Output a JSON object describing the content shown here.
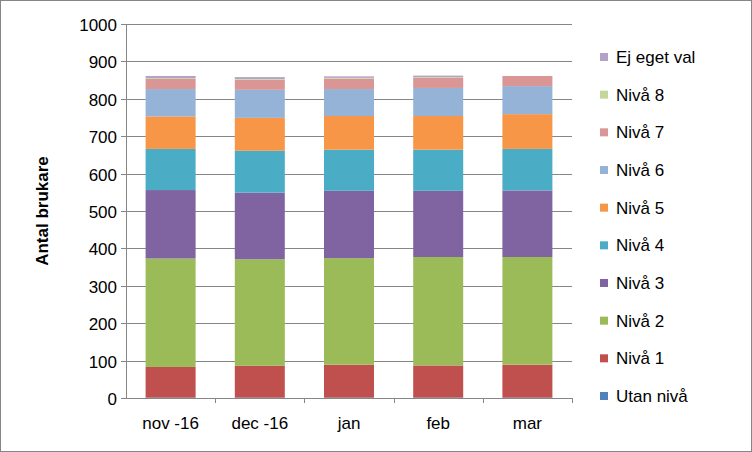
{
  "chart_data": {
    "type": "bar",
    "stacked": true,
    "grid": true,
    "legend": "right",
    "y_label": "Antal brukare",
    "categories": [
      "nov -16",
      "dec -16",
      "jan",
      "feb",
      "mar"
    ],
    "ylim": [
      0,
      1000
    ],
    "yticks": [
      0,
      100,
      200,
      300,
      400,
      500,
      600,
      700,
      800,
      900,
      1000
    ],
    "series": [
      {
        "name": "Utan nivå",
        "color": "#4f81bd",
        "values": [
          1,
          1,
          1,
          1,
          1
        ]
      },
      {
        "name": "Nivå 1",
        "color": "#c0504d",
        "values": [
          82,
          85,
          88,
          86,
          88
        ]
      },
      {
        "name": "Nivå 2",
        "color": "#9bbb59",
        "values": [
          290,
          285,
          285,
          290,
          288
        ]
      },
      {
        "name": "Nivå 3",
        "color": "#8064a2",
        "values": [
          183,
          178,
          180,
          177,
          178
        ]
      },
      {
        "name": "Nivå 4",
        "color": "#4bacc6",
        "values": [
          110,
          112,
          110,
          110,
          111
        ]
      },
      {
        "name": "Nivå 5",
        "color": "#f79646",
        "values": [
          87,
          88,
          90,
          90,
          93
        ]
      },
      {
        "name": "Nivå 6",
        "color": "#95b3d7",
        "values": [
          73,
          75,
          72,
          75,
          75
        ]
      },
      {
        "name": "Nivå 7",
        "color": "#d99694",
        "values": [
          27,
          27,
          28,
          27,
          27
        ]
      },
      {
        "name": "Nivå 8",
        "color": "#c3d69b",
        "values": [
          2,
          2,
          2,
          2,
          0
        ]
      },
      {
        "name": "Ej eget val",
        "color": "#b3a2c7",
        "values": [
          6,
          5,
          4,
          4,
          0
        ]
      }
    ]
  }
}
